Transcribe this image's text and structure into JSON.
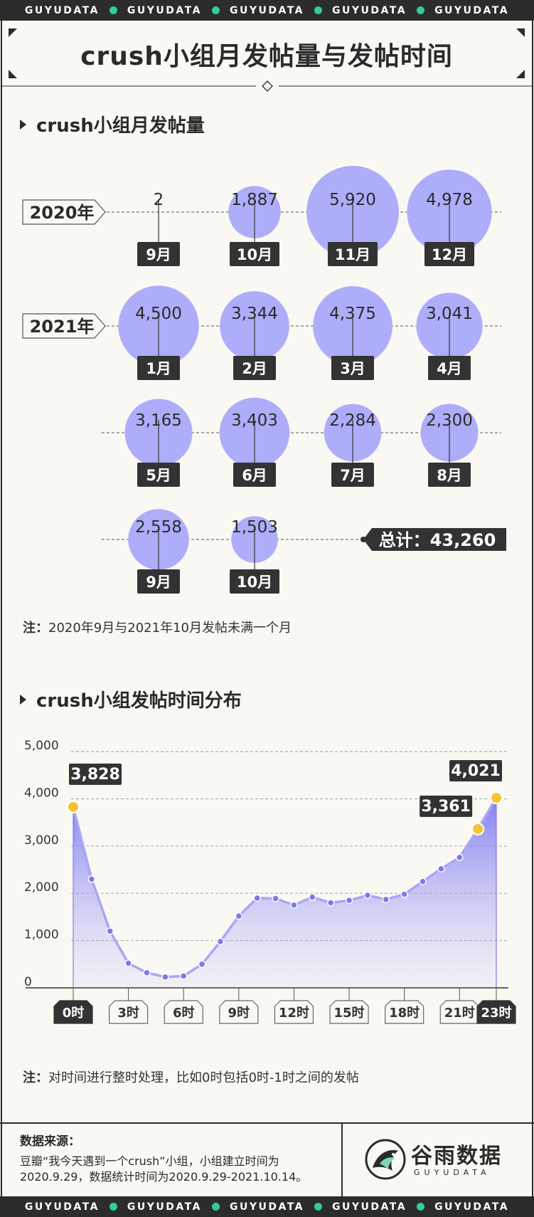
{
  "brand": {
    "band_text": "GUYUDATA",
    "band_repeats": 5,
    "logo_cn": "谷雨数据",
    "logo_en": "GUYUDATA",
    "accent": "#2fcf8f"
  },
  "title": "crush小组月发帖量与发帖时间",
  "section1": {
    "title": "crush小组月发帖量",
    "note_label": "注：",
    "note_text": "2020年9月与2021年10月发帖未满一个月"
  },
  "section2": {
    "title": "crush小组发帖时间分布",
    "note_label": "注：",
    "note_text": "对时间进行整时处理，比如0时包括0时-1时之间的发帖"
  },
  "footer": {
    "source_label": "数据来源：",
    "source_text": "豆瓣“我今天遇到一个crush”小组，小组建立时间为2020.9.29，数据统计时间为2020.9.29-2021.10.14。"
  },
  "colors": {
    "bubble": "#aeadf9",
    "line": "#7b78ee",
    "highlight": "#f5c232",
    "dark": "#333333"
  },
  "chart_data": [
    {
      "type": "bubble",
      "title": "crush小组月发帖量",
      "year_labels": [
        "2020年",
        "2021年"
      ],
      "total_label": "总计：43,260",
      "total": 43260,
      "points": [
        {
          "year": "2020",
          "month": "9月",
          "value": 2,
          "label": "2"
        },
        {
          "year": "2020",
          "month": "10月",
          "value": 1887,
          "label": "1,887"
        },
        {
          "year": "2020",
          "month": "11月",
          "value": 5920,
          "label": "5,920"
        },
        {
          "year": "2020",
          "month": "12月",
          "value": 4978,
          "label": "4,978"
        },
        {
          "year": "2021",
          "month": "1月",
          "value": 4500,
          "label": "4,500"
        },
        {
          "year": "2021",
          "month": "2月",
          "value": 3344,
          "label": "3,344"
        },
        {
          "year": "2021",
          "month": "3月",
          "value": 4375,
          "label": "4,375"
        },
        {
          "year": "2021",
          "month": "4月",
          "value": 3041,
          "label": "3,041"
        },
        {
          "year": "2021",
          "month": "5月",
          "value": 3165,
          "label": "3,165"
        },
        {
          "year": "2021",
          "month": "6月",
          "value": 3403,
          "label": "3,403"
        },
        {
          "year": "2021",
          "month": "7月",
          "value": 2284,
          "label": "2,284"
        },
        {
          "year": "2021",
          "month": "8月",
          "value": 2300,
          "label": "2,300"
        },
        {
          "year": "2021",
          "month": "9月",
          "value": 2558,
          "label": "2,558"
        },
        {
          "year": "2021",
          "month": "10月",
          "value": 1503,
          "label": "1,503"
        }
      ]
    },
    {
      "type": "area",
      "title": "crush小组发帖时间分布",
      "ylim": [
        0,
        5000
      ],
      "yticks": [
        "0",
        "1,000",
        "2,000",
        "3,000",
        "4,000",
        "5,000"
      ],
      "ytick_values": [
        0,
        1000,
        2000,
        3000,
        4000,
        5000
      ],
      "x": [
        0,
        1,
        2,
        3,
        4,
        5,
        6,
        7,
        8,
        9,
        10,
        11,
        12,
        13,
        14,
        15,
        16,
        17,
        18,
        19,
        20,
        21,
        22,
        23
      ],
      "xtick_labels": [
        "0时",
        "3时",
        "6时",
        "9时",
        "12时",
        "15时",
        "18时",
        "21时",
        "23时"
      ],
      "xtick_hours": [
        0,
        3,
        6,
        9,
        12,
        15,
        18,
        21,
        23
      ],
      "values": [
        3828,
        2300,
        1200,
        520,
        320,
        230,
        250,
        500,
        980,
        1520,
        1900,
        1890,
        1750,
        1920,
        1800,
        1850,
        1960,
        1870,
        1980,
        2250,
        2520,
        2760,
        3361,
        4021
      ],
      "callouts": [
        {
          "hour": 0,
          "label": "3,828"
        },
        {
          "hour": 22,
          "label": "3,361"
        },
        {
          "hour": 23,
          "label": "4,021"
        }
      ],
      "grid": true
    }
  ]
}
